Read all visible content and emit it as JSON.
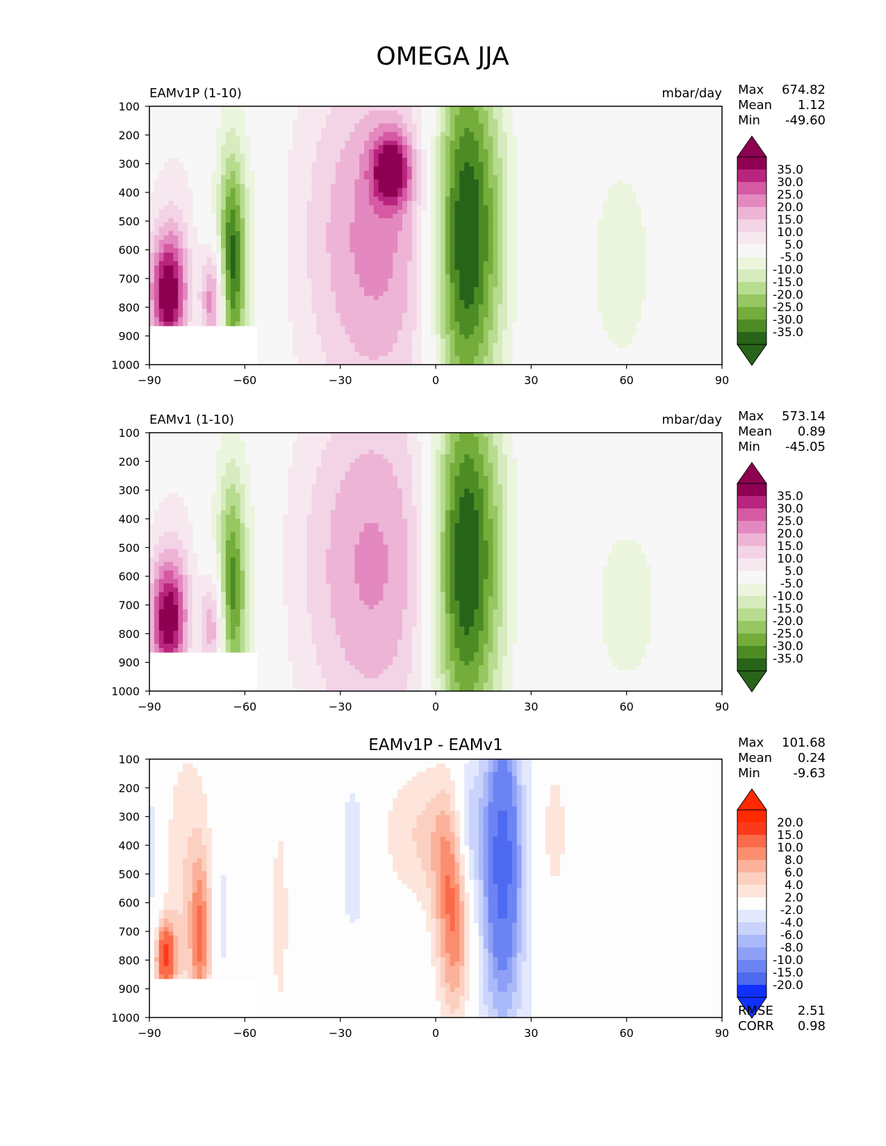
{
  "title": "OMEGA JJA",
  "colors": {
    "seq_pos": [
      "#f7e8f0",
      "#f3d3e6",
      "#edb4d6",
      "#e389bf",
      "#d55aa3",
      "#b8247e",
      "#8e0152"
    ],
    "seq_neg": [
      "#ebf5dd",
      "#d6ecbf",
      "#b7dc8f",
      "#96c762",
      "#74ad3b",
      "#4d8b25",
      "#276419"
    ],
    "neutral": "#f7f7f7",
    "diff_pos": [
      "#fde5dc",
      "#fcd0c0",
      "#fcb19a",
      "#fb8e6e",
      "#fb6a4a",
      "#fb3a1c",
      "#ff2a00"
    ],
    "diff_neg": [
      "#e2e8fd",
      "#c9d3fb",
      "#aab9f9",
      "#8ea0f6",
      "#6c84f3",
      "#4e6af0",
      "#1030ff"
    ]
  },
  "chart_data": [
    {
      "type": "heatmap",
      "panel_title": "EAMv1P (1-10)",
      "units": "mbar/day",
      "stats": {
        "Max": "674.82",
        "Mean": "1.12",
        "Min": "-49.60"
      },
      "xlim": [
        -90,
        90
      ],
      "ylim": [
        1000,
        100
      ],
      "xticks": [
        "−90",
        "−60",
        "−30",
        "0",
        "30",
        "60",
        "90"
      ],
      "yticks": [
        "100",
        "200",
        "300",
        "400",
        "500",
        "600",
        "700",
        "800",
        "900",
        "1000"
      ],
      "levels": [
        "35.0",
        "30.0",
        "25.0",
        "20.0",
        "15.0",
        "10.0",
        "5.0",
        "-5.0",
        "-10.0",
        "-15.0",
        "-20.0",
        "-25.0",
        "-30.0",
        "-35.0"
      ],
      "features": [
        {
          "lat": -84,
          "p": 760,
          "w": 6,
          "h": 220,
          "v": 40
        },
        {
          "lat": -70,
          "p": 780,
          "w": 4,
          "h": 200,
          "v": 30
        },
        {
          "lat": -78,
          "p": 450,
          "w": 14,
          "h": 360,
          "v": 7
        },
        {
          "lat": -65,
          "p": 620,
          "w": 10,
          "h": 520,
          "v": -14
        },
        {
          "lat": -64,
          "p": 640,
          "w": 4,
          "h": 360,
          "v": -27
        },
        {
          "lat": -19,
          "p": 560,
          "w": 24,
          "h": 680,
          "v": 22
        },
        {
          "lat": -14,
          "p": 320,
          "w": 6,
          "h": 120,
          "v": 30
        },
        {
          "lat": 8,
          "p": 560,
          "w": 10,
          "h": 700,
          "v": -36
        },
        {
          "lat": 16,
          "p": 520,
          "w": 12,
          "h": 600,
          "v": -14
        },
        {
          "lat": 33,
          "p": 520,
          "w": 10,
          "h": 640,
          "v": 6
        },
        {
          "lat": 58,
          "p": 650,
          "w": 14,
          "h": 500,
          "v": -7
        }
      ]
    },
    {
      "type": "heatmap",
      "panel_title": "EAMv1 (1-10)",
      "units": "mbar/day",
      "stats": {
        "Max": "573.14",
        "Mean": "0.89",
        "Min": "-45.05"
      },
      "xlim": [
        -90,
        90
      ],
      "ylim": [
        1000,
        100
      ],
      "xticks": [
        "−90",
        "−60",
        "−30",
        "0",
        "30",
        "60",
        "90"
      ],
      "yticks": [
        "100",
        "200",
        "300",
        "400",
        "500",
        "600",
        "700",
        "800",
        "900",
        "1000"
      ],
      "levels": [
        "35.0",
        "30.0",
        "25.0",
        "20.0",
        "15.0",
        "10.0",
        "5.0",
        "-5.0",
        "-10.0",
        "-15.0",
        "-20.0",
        "-25.0",
        "-30.0",
        "-35.0"
      ],
      "features": [
        {
          "lat": -84,
          "p": 760,
          "w": 6,
          "h": 220,
          "v": 38
        },
        {
          "lat": -70,
          "p": 780,
          "w": 4,
          "h": 200,
          "v": 25
        },
        {
          "lat": -78,
          "p": 500,
          "w": 14,
          "h": 360,
          "v": 7
        },
        {
          "lat": -65,
          "p": 620,
          "w": 10,
          "h": 520,
          "v": -14
        },
        {
          "lat": -64,
          "p": 640,
          "w": 4,
          "h": 360,
          "v": -22
        },
        {
          "lat": -20,
          "p": 560,
          "w": 24,
          "h": 680,
          "v": 21
        },
        {
          "lat": 8,
          "p": 560,
          "w": 10,
          "h": 700,
          "v": -36
        },
        {
          "lat": 16,
          "p": 520,
          "w": 12,
          "h": 600,
          "v": -13
        },
        {
          "lat": 32,
          "p": 560,
          "w": 8,
          "h": 600,
          "v": 6
        },
        {
          "lat": 60,
          "p": 700,
          "w": 14,
          "h": 400,
          "v": -7
        }
      ]
    },
    {
      "type": "heatmap",
      "panel_title": "EAMv1P - EAMv1",
      "units": "",
      "stats": {
        "Max": "101.68",
        "Mean": "0.24",
        "Min": "-9.63"
      },
      "metrics": {
        "RMSE": "2.51",
        "CORR": "0.98"
      },
      "xlim": [
        -90,
        90
      ],
      "ylim": [
        1000,
        100
      ],
      "xticks": [
        "−90",
        "−60",
        "−30",
        "0",
        "30",
        "60",
        "90"
      ],
      "yticks": [
        "100",
        "200",
        "300",
        "400",
        "500",
        "600",
        "700",
        "800",
        "900",
        "1000"
      ],
      "levels": [
        "20.0",
        "15.0",
        "10.0",
        "8.0",
        "6.0",
        "4.0",
        "2.0",
        "-2.0",
        "-4.0",
        "-6.0",
        "-8.0",
        "-10.0",
        "-15.0",
        "-20.0"
      ],
      "features": [
        {
          "lat": -85,
          "p": 790,
          "w": 3,
          "h": 120,
          "v": 15
        },
        {
          "lat": -78,
          "p": 580,
          "w": 8,
          "h": 560,
          "v": 4
        },
        {
          "lat": -74,
          "p": 720,
          "w": 3,
          "h": 280,
          "v": 8
        },
        {
          "lat": -89,
          "p": 450,
          "w": 3,
          "h": 400,
          "v": -3
        },
        {
          "lat": -67,
          "p": 640,
          "w": 3,
          "h": 360,
          "v": -3
        },
        {
          "lat": -5,
          "p": 360,
          "w": 12,
          "h": 240,
          "v": 4
        },
        {
          "lat": 5,
          "p": 500,
          "w": 6,
          "h": 300,
          "v": 8
        },
        {
          "lat": 6,
          "p": 790,
          "w": 5,
          "h": 280,
          "v": 6
        },
        {
          "lat": 10,
          "p": 360,
          "w": 5,
          "h": 240,
          "v": -6
        },
        {
          "lat": 21,
          "p": 550,
          "w": 9,
          "h": 800,
          "v": -6
        },
        {
          "lat": 21,
          "p": 450,
          "w": 5,
          "h": 400,
          "v": -12
        },
        {
          "lat": 37,
          "p": 350,
          "w": 5,
          "h": 300,
          "v": 3
        },
        {
          "lat": -49,
          "p": 650,
          "w": 3,
          "h": 420,
          "v": 3
        },
        {
          "lat": -26,
          "p": 440,
          "w": 5,
          "h": 380,
          "v": -3
        }
      ]
    }
  ]
}
